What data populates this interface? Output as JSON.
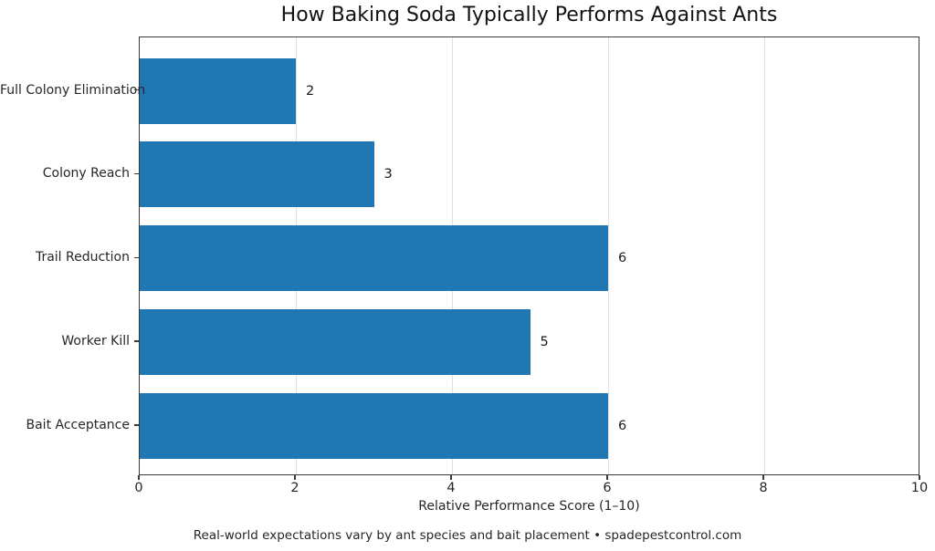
{
  "chart_data": {
    "type": "bar",
    "orientation": "horizontal",
    "title": "How Baking Soda Typically Performs Against Ants",
    "categories": [
      "Full Colony Elimination",
      "Colony Reach",
      "Trail Reduction",
      "Worker Kill",
      "Bait Acceptance"
    ],
    "values": [
      2,
      3,
      6,
      5,
      6
    ],
    "value_labels": [
      "2",
      "3",
      "6",
      "5",
      "6"
    ],
    "xlabel": "Relative Performance Score (1–10)",
    "ylabel": "",
    "xlim": [
      0,
      10
    ],
    "xticks": [
      0,
      2,
      4,
      6,
      8,
      10
    ],
    "xtick_labels": [
      "0",
      "2",
      "4",
      "6",
      "8",
      "10"
    ],
    "grid": "vertical-only",
    "legend": "none",
    "footnote": "Real-world expectations vary by ant species and bait placement • spadepestcontrol.com"
  },
  "colors": {
    "bar": "#1f77b4",
    "grid": "#e0e0e0",
    "spine": "#3a3a3a",
    "text": "#1a1a1a",
    "background": "#ffffff"
  }
}
